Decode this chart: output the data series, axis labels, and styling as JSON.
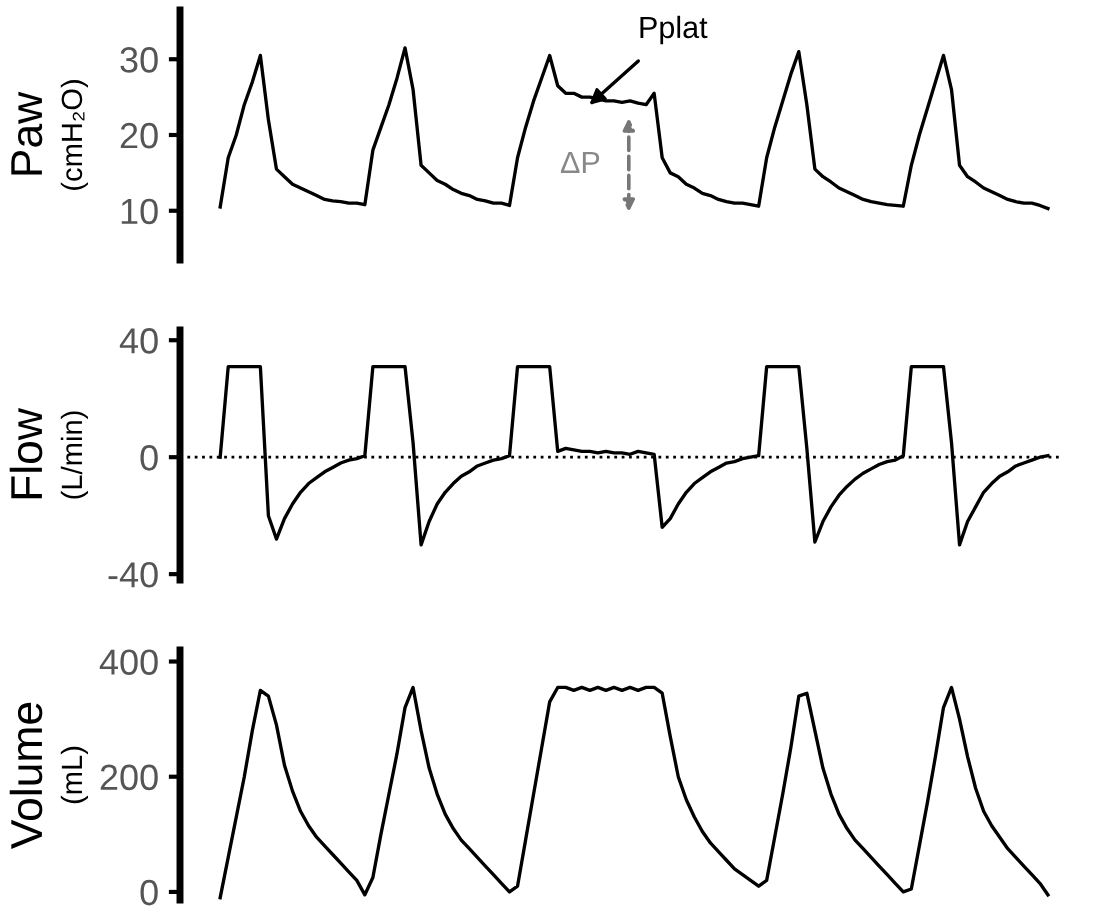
{
  "chart_data": [
    {
      "type": "line",
      "ylabel": "Paw (cmH₂O)",
      "tick_labels": "y",
      "grid": false,
      "ylim": [
        3.5,
        36.5
      ],
      "yticks": [
        10,
        20,
        30
      ],
      "categories": [
        null,
        null,
        null,
        null,
        null,
        null,
        null,
        null,
        null,
        null,
        null,
        null,
        null,
        null,
        null,
        null,
        null,
        null,
        null,
        null,
        null,
        null,
        null,
        null,
        null,
        null,
        null,
        null,
        null,
        null,
        null,
        null,
        null,
        null,
        null,
        null,
        null,
        null,
        null,
        null,
        null,
        null,
        null,
        null,
        null,
        null,
        null,
        null,
        null,
        null,
        null,
        null,
        null,
        null,
        null,
        null,
        null,
        null,
        null,
        null,
        null,
        null,
        null,
        null,
        null,
        null,
        null,
        null,
        null,
        null,
        null,
        null,
        null,
        null,
        null,
        null,
        null,
        null,
        null,
        null,
        null,
        null,
        null,
        null,
        null,
        null,
        null,
        null,
        null,
        null,
        null,
        null,
        null,
        null,
        null,
        null,
        null,
        null,
        null,
        null,
        null,
        null,
        null,
        null
      ],
      "series": [
        {
          "color": "#000000",
          "values": [
            10.5,
            17,
            20,
            24,
            27,
            30.5,
            22,
            15.5,
            14.5,
            13.5,
            13,
            12.5,
            12,
            11.5,
            11.3,
            11.2,
            11,
            11,
            10.8,
            18,
            21,
            24,
            27.5,
            31.5,
            26,
            16,
            15,
            14,
            13.5,
            12.8,
            12.3,
            12,
            11.5,
            11.3,
            11,
            11,
            10.7,
            17,
            21,
            24.5,
            27.5,
            30.5,
            26.5,
            25.5,
            25.5,
            25,
            25,
            24.8,
            24.5,
            24.5,
            24.3,
            24.5,
            24.2,
            24,
            25.5,
            17,
            15,
            14.5,
            13.5,
            13,
            12.3,
            12,
            11.5,
            11.2,
            11,
            11,
            10.8,
            10.6,
            17,
            21,
            24.5,
            28,
            31,
            24,
            15.5,
            14.5,
            13.8,
            13,
            12.5,
            12,
            11.5,
            11.2,
            11,
            10.8,
            10.7,
            10.6,
            16,
            20,
            23.5,
            27,
            30.5,
            26,
            16,
            14.5,
            13.8,
            13,
            12.5,
            12,
            11.5,
            11.2,
            11,
            11,
            10.7,
            10.3
          ]
        }
      ],
      "annotations": [
        "Pplat",
        "ΔP"
      ]
    },
    {
      "type": "line",
      "ylabel": "Flow (L/min)",
      "tick_labels": "y",
      "grid": false,
      "ylim": [
        -42,
        43.5
      ],
      "yticks": [
        -40,
        0,
        40
      ],
      "categories": [
        null,
        null,
        null,
        null,
        null,
        null,
        null,
        null,
        null,
        null,
        null,
        null,
        null,
        null,
        null,
        null,
        null,
        null,
        null,
        null,
        null,
        null,
        null,
        null,
        null,
        null,
        null,
        null,
        null,
        null,
        null,
        null,
        null,
        null,
        null,
        null,
        null,
        null,
        null,
        null,
        null,
        null,
        null,
        null,
        null,
        null,
        null,
        null,
        null,
        null,
        null,
        null,
        null,
        null,
        null,
        null,
        null,
        null,
        null,
        null,
        null,
        null,
        null,
        null,
        null,
        null,
        null,
        null,
        null,
        null,
        null,
        null,
        null,
        null,
        null,
        null,
        null,
        null,
        null,
        null,
        null,
        null,
        null,
        null,
        null,
        null,
        null,
        null,
        null,
        null,
        null,
        null,
        null,
        null,
        null,
        null,
        null,
        null,
        null,
        null,
        null,
        null,
        null,
        null
      ],
      "series": [
        {
          "color": "#000000",
          "values": [
            0,
            31,
            31,
            31,
            31,
            31,
            -20,
            -28,
            -21,
            -16,
            -12,
            -9,
            -7,
            -5,
            -3.5,
            -2,
            -1,
            -0.5,
            0.5,
            31,
            31,
            31,
            31,
            31,
            5,
            -30,
            -22,
            -16,
            -12,
            -9,
            -6.5,
            -5,
            -3,
            -2,
            -1,
            -0.5,
            0.5,
            31,
            31,
            31,
            31,
            31,
            2,
            3,
            2.5,
            2,
            2,
            1.5,
            2,
            1.5,
            1.5,
            1,
            2,
            1.5,
            1,
            -24,
            -21,
            -16,
            -12,
            -9,
            -7,
            -5,
            -3.5,
            -2,
            -1.5,
            -0.5,
            0,
            0.5,
            31,
            31,
            31,
            31,
            31,
            3,
            -29,
            -22,
            -17,
            -13,
            -10,
            -7.5,
            -5.5,
            -4,
            -2.5,
            -1.5,
            -1,
            0.5,
            31,
            31,
            31,
            31,
            31,
            5,
            -30,
            -22,
            -17,
            -12,
            -9,
            -6.5,
            -5,
            -3,
            -2,
            -1,
            0,
            0.5
          ]
        }
      ],
      "ref_lines": [
        {
          "axis": "y",
          "value": 0,
          "line_style": "dotted",
          "color": "#000000"
        }
      ]
    },
    {
      "type": "line",
      "ylabel": "Volume (mL)",
      "tick_labels": "y",
      "grid": false,
      "ylim": [
        -14,
        420
      ],
      "yticks": [
        0,
        200,
        400
      ],
      "categories": [
        null,
        null,
        null,
        null,
        null,
        null,
        null,
        null,
        null,
        null,
        null,
        null,
        null,
        null,
        null,
        null,
        null,
        null,
        null,
        null,
        null,
        null,
        null,
        null,
        null,
        null,
        null,
        null,
        null,
        null,
        null,
        null,
        null,
        null,
        null,
        null,
        null,
        null,
        null,
        null,
        null,
        null,
        null,
        null,
        null,
        null,
        null,
        null,
        null,
        null,
        null,
        null,
        null,
        null,
        null,
        null,
        null,
        null,
        null,
        null,
        null,
        null,
        null,
        null,
        null,
        null,
        null,
        null,
        null,
        null,
        null,
        null,
        null,
        null,
        null,
        null,
        null,
        null,
        null,
        null,
        null,
        null,
        null,
        null,
        null,
        null,
        null,
        null,
        null,
        null,
        null,
        null,
        null,
        null,
        null,
        null,
        null,
        null,
        null,
        null,
        null,
        null,
        null,
        null
      ],
      "series": [
        {
          "color": "#000000",
          "values": [
            -10,
            60,
            130,
            200,
            280,
            350,
            340,
            290,
            220,
            175,
            140,
            115,
            95,
            80,
            65,
            50,
            35,
            20,
            -5,
            25,
            100,
            170,
            240,
            320,
            355,
            280,
            215,
            170,
            135,
            110,
            90,
            75,
            60,
            45,
            30,
            15,
            0,
            10,
            90,
            170,
            250,
            330,
            355,
            355,
            350,
            355,
            350,
            355,
            350,
            355,
            350,
            355,
            350,
            355,
            355,
            345,
            270,
            200,
            160,
            130,
            105,
            85,
            70,
            55,
            40,
            30,
            20,
            10,
            20,
            95,
            170,
            250,
            340,
            345,
            280,
            215,
            170,
            135,
            110,
            90,
            75,
            60,
            45,
            30,
            15,
            0,
            5,
            80,
            155,
            235,
            320,
            355,
            300,
            235,
            180,
            140,
            115,
            95,
            75,
            60,
            45,
            30,
            15,
            -5
          ]
        }
      ]
    }
  ]
}
